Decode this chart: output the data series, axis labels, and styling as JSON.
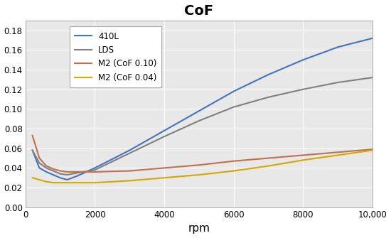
{
  "title": "CoF",
  "xlabel": "rpm",
  "title_fontsize": 14,
  "xlabel_fontsize": 11,
  "ylim": [
    0.0,
    0.19
  ],
  "xlim": [
    0,
    10000
  ],
  "yticks": [
    0.0,
    0.02,
    0.04,
    0.06,
    0.08,
    0.1,
    0.12,
    0.14,
    0.16,
    0.18
  ],
  "xticks": [
    0,
    2000,
    4000,
    6000,
    8000,
    10000
  ],
  "xticklabels": [
    "0",
    "2000",
    "4000",
    "6000",
    "8000",
    "10,000"
  ],
  "background_color": "#ffffff",
  "plot_bg_color": "#e8e8e8",
  "grid_color": "#ffffff",
  "series": [
    {
      "label": "410L",
      "color": "#4472c4",
      "x": [
        200,
        400,
        600,
        800,
        1000,
        1200,
        1500,
        2000,
        3000,
        4000,
        5000,
        6000,
        7000,
        8000,
        9000,
        10000
      ],
      "y": [
        0.058,
        0.04,
        0.036,
        0.033,
        0.03,
        0.028,
        0.032,
        0.04,
        0.058,
        0.078,
        0.098,
        0.118,
        0.135,
        0.15,
        0.163,
        0.172
      ]
    },
    {
      "label": "LDS",
      "color": "#808080",
      "x": [
        200,
        400,
        600,
        800,
        1000,
        1200,
        1500,
        2000,
        3000,
        4000,
        5000,
        6000,
        7000,
        8000,
        9000,
        10000
      ],
      "y": [
        0.058,
        0.045,
        0.04,
        0.037,
        0.034,
        0.033,
        0.035,
        0.038,
        0.055,
        0.072,
        0.088,
        0.102,
        0.112,
        0.12,
        0.127,
        0.132
      ]
    },
    {
      "label": "M2 (CoF 0.10)",
      "color": "#c0704d",
      "x": [
        200,
        400,
        600,
        800,
        1000,
        1200,
        1500,
        2000,
        3000,
        4000,
        5000,
        6000,
        7000,
        8000,
        9000,
        10000
      ],
      "y": [
        0.073,
        0.05,
        0.042,
        0.039,
        0.037,
        0.036,
        0.036,
        0.036,
        0.037,
        0.04,
        0.043,
        0.047,
        0.05,
        0.053,
        0.056,
        0.059
      ]
    },
    {
      "label": "M2 (CoF 0.04)",
      "color": "#d4a800",
      "x": [
        200,
        400,
        600,
        800,
        1000,
        1200,
        1500,
        2000,
        3000,
        4000,
        5000,
        6000,
        7000,
        8000,
        9000,
        10000
      ],
      "y": [
        0.03,
        0.028,
        0.026,
        0.025,
        0.025,
        0.025,
        0.025,
        0.025,
        0.027,
        0.03,
        0.033,
        0.037,
        0.042,
        0.048,
        0.053,
        0.058
      ]
    }
  ],
  "linewidth": 1.5
}
